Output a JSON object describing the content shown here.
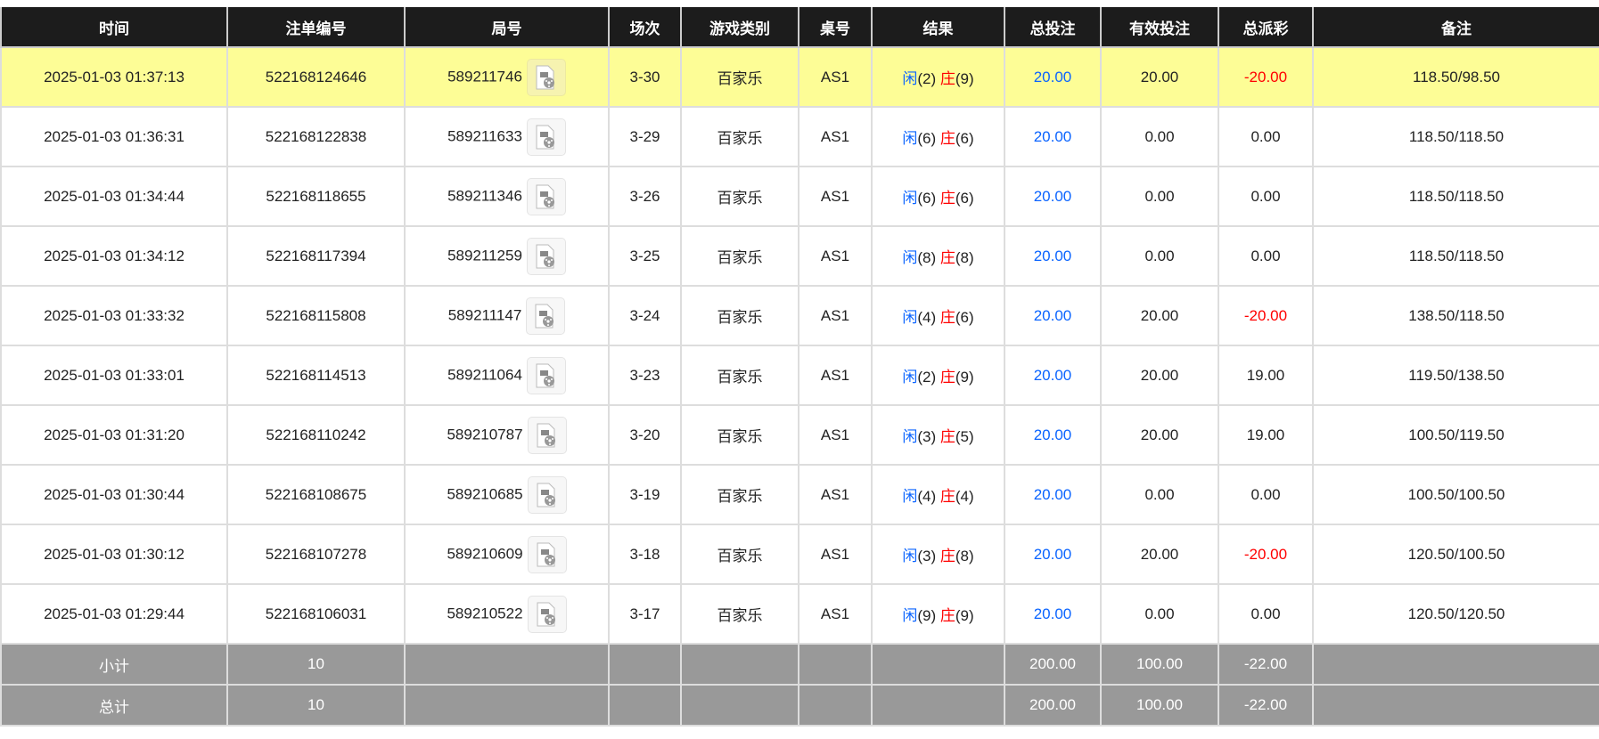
{
  "headers": [
    "时间",
    "注单编号",
    "局号",
    "场次",
    "游戏类别",
    "桌号",
    "结果",
    "总投注",
    "有效投注",
    "总派彩",
    "备注"
  ],
  "player_label": "闲",
  "banker_label": "庄",
  "rows": [
    {
      "time": "2025-01-03 01:37:13",
      "bet_id": "522168124646",
      "round": "589211746",
      "shoe": "3-30",
      "game": "百家乐",
      "table": "AS1",
      "p": "(2)",
      "b": "(9)",
      "total": "20.00",
      "valid": "20.00",
      "payout": "-20.00",
      "negative": true,
      "note": "118.50/98.50",
      "highlight": true
    },
    {
      "time": "2025-01-03 01:36:31",
      "bet_id": "522168122838",
      "round": "589211633",
      "shoe": "3-29",
      "game": "百家乐",
      "table": "AS1",
      "p": "(6)",
      "b": "(6)",
      "total": "20.00",
      "valid": "0.00",
      "payout": "0.00",
      "negative": false,
      "note": "118.50/118.50"
    },
    {
      "time": "2025-01-03 01:34:44",
      "bet_id": "522168118655",
      "round": "589211346",
      "shoe": "3-26",
      "game": "百家乐",
      "table": "AS1",
      "p": "(6)",
      "b": "(6)",
      "total": "20.00",
      "valid": "0.00",
      "payout": "0.00",
      "negative": false,
      "note": "118.50/118.50"
    },
    {
      "time": "2025-01-03 01:34:12",
      "bet_id": "522168117394",
      "round": "589211259",
      "shoe": "3-25",
      "game": "百家乐",
      "table": "AS1",
      "p": "(8)",
      "b": "(8)",
      "total": "20.00",
      "valid": "0.00",
      "payout": "0.00",
      "negative": false,
      "note": "118.50/118.50"
    },
    {
      "time": "2025-01-03 01:33:32",
      "bet_id": "522168115808",
      "round": "589211147",
      "shoe": "3-24",
      "game": "百家乐",
      "table": "AS1",
      "p": "(4)",
      "b": "(6)",
      "total": "20.00",
      "valid": "20.00",
      "payout": "-20.00",
      "negative": true,
      "note": "138.50/118.50"
    },
    {
      "time": "2025-01-03 01:33:01",
      "bet_id": "522168114513",
      "round": "589211064",
      "shoe": "3-23",
      "game": "百家乐",
      "table": "AS1",
      "p": "(2)",
      "b": "(9)",
      "total": "20.00",
      "valid": "20.00",
      "payout": "19.00",
      "negative": false,
      "note": "119.50/138.50"
    },
    {
      "time": "2025-01-03 01:31:20",
      "bet_id": "522168110242",
      "round": "589210787",
      "shoe": "3-20",
      "game": "百家乐",
      "table": "AS1",
      "p": "(3)",
      "b": "(5)",
      "total": "20.00",
      "valid": "20.00",
      "payout": "19.00",
      "negative": false,
      "note": "100.50/119.50"
    },
    {
      "time": "2025-01-03 01:30:44",
      "bet_id": "522168108675",
      "round": "589210685",
      "shoe": "3-19",
      "game": "百家乐",
      "table": "AS1",
      "p": "(4)",
      "b": "(4)",
      "total": "20.00",
      "valid": "0.00",
      "payout": "0.00",
      "negative": false,
      "note": "100.50/100.50"
    },
    {
      "time": "2025-01-03 01:30:12",
      "bet_id": "522168107278",
      "round": "589210609",
      "shoe": "3-18",
      "game": "百家乐",
      "table": "AS1",
      "p": "(3)",
      "b": "(8)",
      "total": "20.00",
      "valid": "20.00",
      "payout": "-20.00",
      "negative": true,
      "note": "120.50/100.50"
    },
    {
      "time": "2025-01-03 01:29:44",
      "bet_id": "522168106031",
      "round": "589210522",
      "shoe": "3-17",
      "game": "百家乐",
      "table": "AS1",
      "p": "(9)",
      "b": "(9)",
      "total": "20.00",
      "valid": "0.00",
      "payout": "0.00",
      "negative": false,
      "note": "120.50/120.50"
    }
  ],
  "summary": [
    {
      "label": "小计",
      "count": "10",
      "total": "200.00",
      "valid": "100.00",
      "payout": "-22.00"
    },
    {
      "label": "总计",
      "count": "10",
      "total": "200.00",
      "valid": "100.00",
      "payout": "-22.00"
    }
  ],
  "icons": {
    "replay": "video-file-icon"
  }
}
